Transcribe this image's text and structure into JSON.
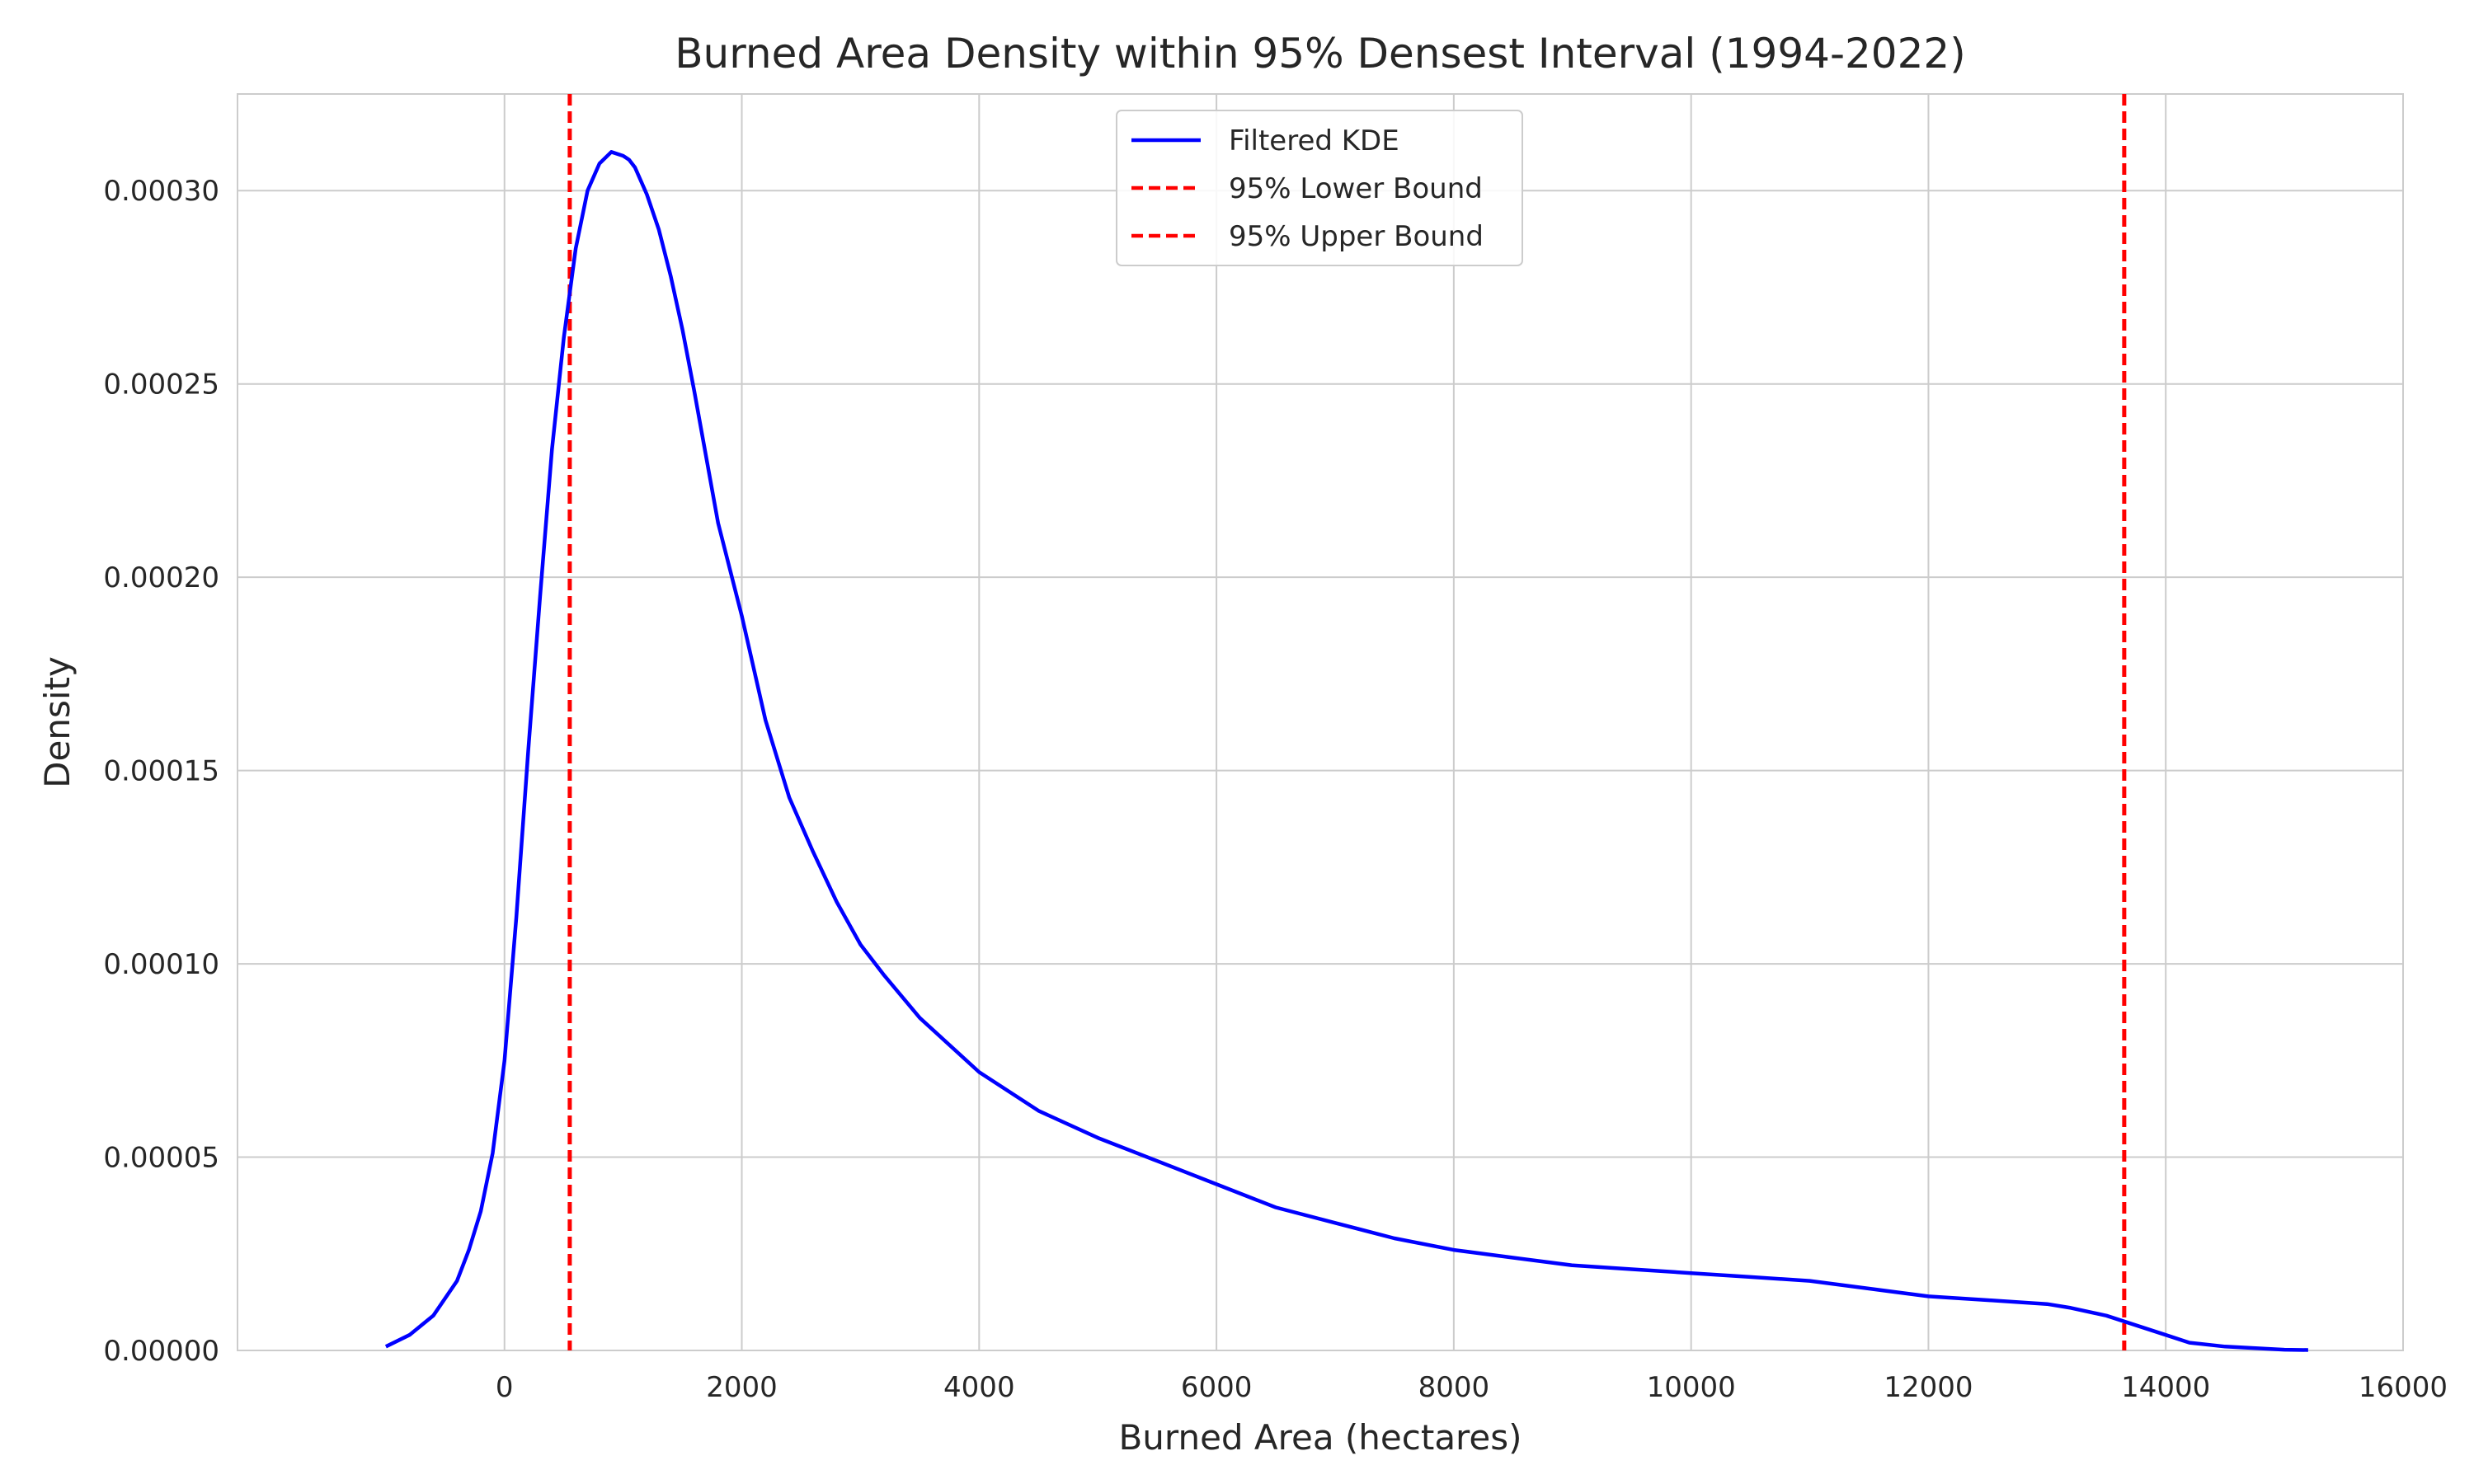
{
  "chart_data": {
    "type": "line",
    "title": "Burned Area Density within 95% Densest Interval (1994-2022)",
    "xlabel": "Burned Area (hectares)",
    "ylabel": "Density",
    "xlim": [
      -2250,
      16000
    ],
    "ylim": [
      0,
      0.000325
    ],
    "grid": true,
    "legend_position": "top-center",
    "x_ticks": [
      0,
      2000,
      4000,
      6000,
      8000,
      10000,
      12000,
      14000,
      16000
    ],
    "x_tick_labels": [
      "0",
      "2000",
      "4000",
      "6000",
      "8000",
      "10000",
      "12000",
      "14000",
      "16000"
    ],
    "y_ticks": [
      0,
      5e-05,
      0.0001,
      0.00015,
      0.0002,
      0.00025,
      0.0003
    ],
    "y_tick_labels": [
      "0.00000",
      "0.00005",
      "0.00010",
      "0.00015",
      "0.00020",
      "0.00025",
      "0.00030"
    ],
    "series": [
      {
        "name": "Filtered KDE",
        "color": "#0000ff",
        "style": "solid",
        "x": [
          -1000,
          -800,
          -600,
          -400,
          -300,
          -200,
          -100,
          0,
          100,
          200,
          300,
          400,
          500,
          600,
          700,
          800,
          900,
          1000,
          1050,
          1100,
          1200,
          1300,
          1400,
          1500,
          1600,
          1800,
          2000,
          2200,
          2400,
          2600,
          2800,
          3000,
          3200,
          3500,
          4000,
          4500,
          5000,
          5500,
          6000,
          6500,
          7000,
          7500,
          8000,
          8500,
          9000,
          9500,
          10000,
          10500,
          11000,
          11500,
          12000,
          12500,
          13000,
          13200,
          13500,
          13700,
          14000,
          14200,
          14500,
          15000,
          15200
        ],
        "y": [
          1e-06,
          4e-06,
          9e-06,
          1.8e-05,
          2.6e-05,
          3.6e-05,
          5.1e-05,
          7.5e-05,
          0.000112,
          0.000155,
          0.000195,
          0.000233,
          0.000262,
          0.000285,
          0.0003,
          0.000307,
          0.00031,
          0.000309,
          0.000308,
          0.000306,
          0.000299,
          0.00029,
          0.000278,
          0.000264,
          0.000248,
          0.000214,
          0.00019,
          0.000163,
          0.000143,
          0.000129,
          0.000116,
          0.000105,
          9.7e-05,
          8.6e-05,
          7.2e-05,
          6.2e-05,
          5.5e-05,
          4.9e-05,
          4.3e-05,
          3.7e-05,
          3.3e-05,
          2.9e-05,
          2.6e-05,
          2.4e-05,
          2.2e-05,
          2.1e-05,
          2e-05,
          1.9e-05,
          1.8e-05,
          1.6e-05,
          1.4e-05,
          1.3e-05,
          1.2e-05,
          1.1e-05,
          9e-06,
          7e-06,
          4e-06,
          2e-06,
          1e-06,
          2e-07,
          1e-07
        ]
      }
    ],
    "vlines": [
      {
        "name": "95% Lower Bound",
        "x": 550,
        "color": "#ff0000",
        "style": "dashed"
      },
      {
        "name": "95% Upper Bound",
        "x": 13650,
        "color": "#ff0000",
        "style": "dashed"
      }
    ]
  }
}
